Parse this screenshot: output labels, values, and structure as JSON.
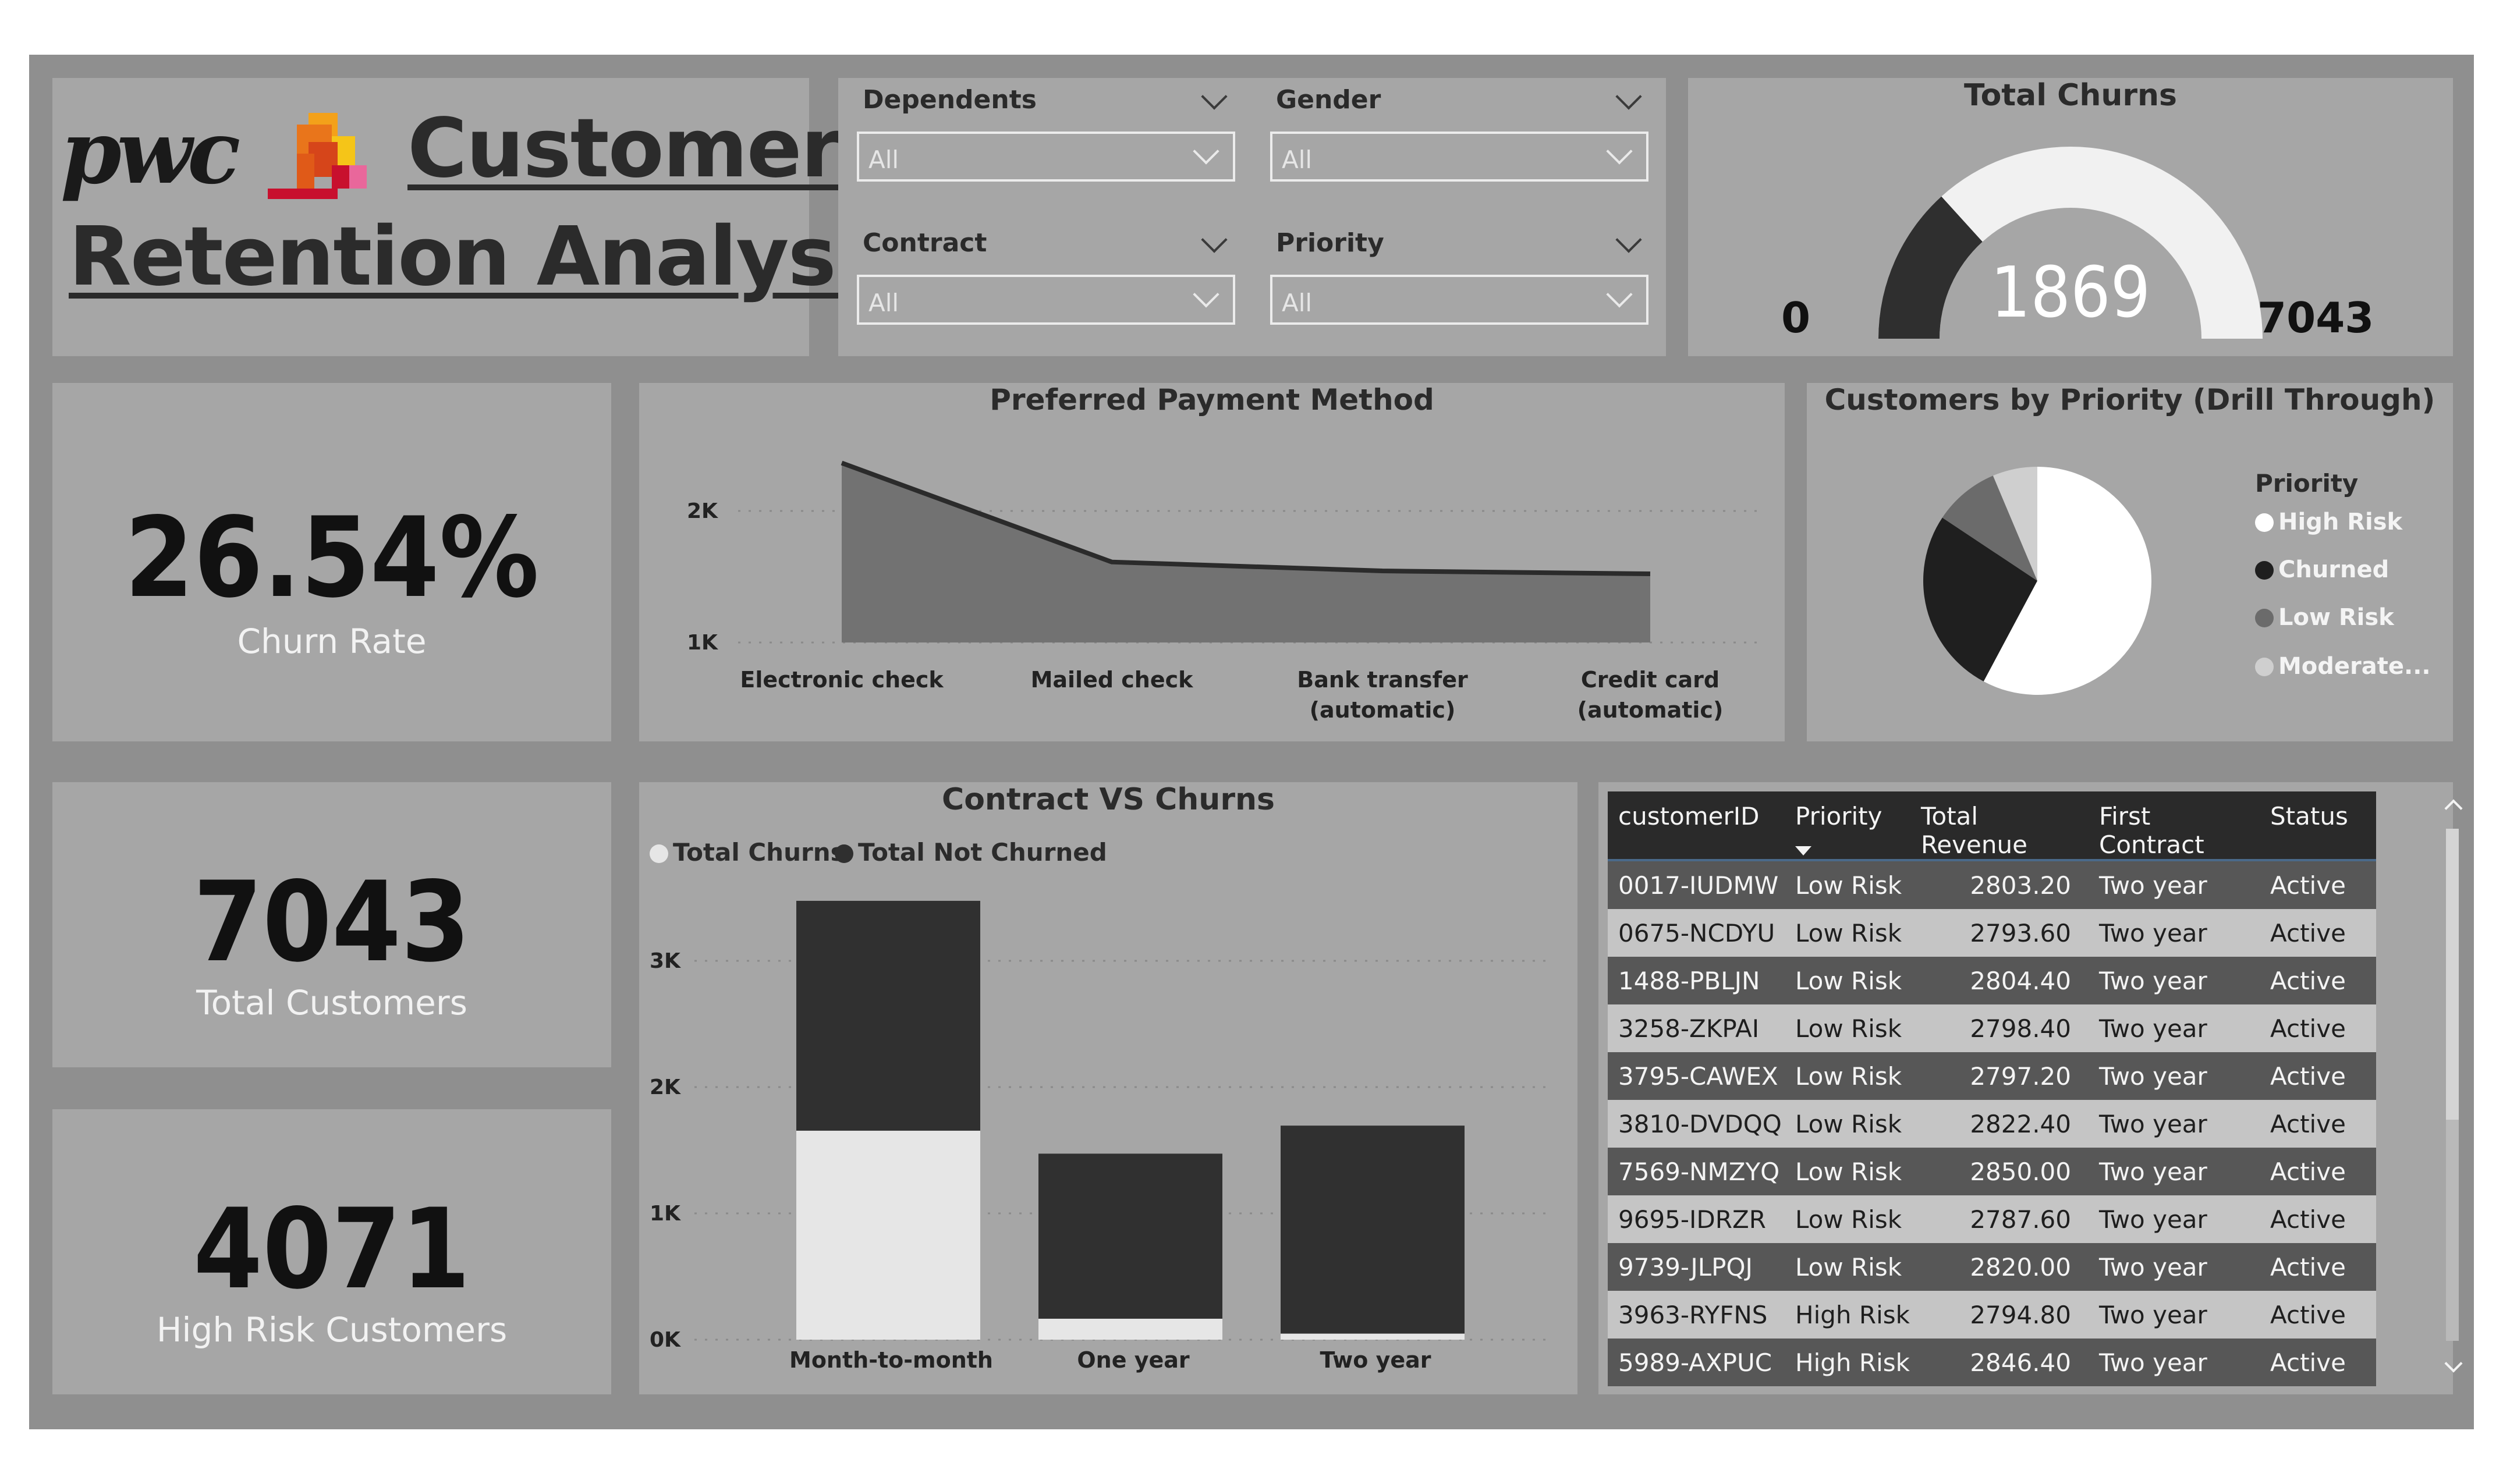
{
  "header": {
    "logo_text": "pwc",
    "title_line1": "Customer",
    "title_line2": "Retention  Analysis"
  },
  "slicers": [
    {
      "label": "Dependents",
      "value": "All"
    },
    {
      "label": "Gender",
      "value": "All"
    },
    {
      "label": "Contract",
      "value": "All"
    },
    {
      "label": "Priority",
      "value": "All"
    }
  ],
  "gauge": {
    "title": "Total Churns",
    "value": "1869",
    "min": "0",
    "max": "7043",
    "fraction": 0.2654
  },
  "kpis": {
    "churn_rate": {
      "value": "26.54%",
      "label": "Churn Rate"
    },
    "total_customers": {
      "value": "7043",
      "label": "Total Customers"
    },
    "high_risk": {
      "value": "4071",
      "label": "High Risk Customers"
    }
  },
  "payment_chart": {
    "title": "Preferred Payment Method",
    "y_ticks": [
      "2K",
      "1K"
    ],
    "categories": [
      "Electronic check",
      "Mailed check",
      "Bank transfer (automatic)",
      "Credit card (automatic)"
    ]
  },
  "priority_chart": {
    "title": "Customers by Priority (Drill Through)",
    "legend_title": "Priority",
    "legend": [
      "High Risk",
      "Churned",
      "Low Risk",
      "Moderate..."
    ]
  },
  "contract_chart": {
    "title": "Contract VS Churns",
    "legend": [
      "Total Churns",
      "Total Not Churned"
    ],
    "y_ticks": [
      "3K",
      "2K",
      "1K",
      "0K"
    ],
    "categories": [
      "Month-to-month",
      "One year",
      "Two year"
    ]
  },
  "chart_data": [
    {
      "type": "area",
      "title": "Preferred Payment Method",
      "categories": [
        "Electronic check",
        "Mailed check",
        "Bank transfer (automatic)",
        "Credit card (automatic)"
      ],
      "values": [
        2365,
        1612,
        1544,
        1522
      ],
      "ylim": [
        1000,
        2500
      ],
      "grid": true
    },
    {
      "type": "pie",
      "title": "Customers by Priority (Drill Through)",
      "labels": [
        "High Risk",
        "Churned",
        "Low Risk",
        "Moderate..."
      ],
      "values": [
        4071,
        1869,
        656,
        447
      ],
      "colors": [
        "#ffffff",
        "#1f1f1f",
        "#6b6b6b",
        "#cfcfcf"
      ],
      "legend": "right"
    },
    {
      "type": "bar",
      "stacked": true,
      "title": "Contract VS Churns",
      "categories": [
        "Month-to-month",
        "One year",
        "Two year"
      ],
      "series": [
        {
          "name": "Total Churns",
          "values": [
            1655,
            166,
            48
          ],
          "color": "#e6e6e6"
        },
        {
          "name": "Total Not Churned",
          "values": [
            1820,
            1307,
            1647
          ],
          "color": "#303030"
        }
      ],
      "ylim": [
        0,
        3600
      ],
      "legend": "top-left",
      "grid": true
    }
  ],
  "table": {
    "columns": [
      "customerID",
      "Priority",
      "Total Revenue",
      "First Contract",
      "Status"
    ],
    "rows": [
      [
        "0017-IUDMW",
        "Low Risk",
        "2803.20",
        "Two year",
        "Active"
      ],
      [
        "0675-NCDYU",
        "Low Risk",
        "2793.60",
        "Two year",
        "Active"
      ],
      [
        "1488-PBLJN",
        "Low Risk",
        "2804.40",
        "Two year",
        "Active"
      ],
      [
        "3258-ZKPAI",
        "Low Risk",
        "2798.40",
        "Two year",
        "Active"
      ],
      [
        "3795-CAWEX",
        "Low Risk",
        "2797.20",
        "Two year",
        "Active"
      ],
      [
        "3810-DVDQQ",
        "Low Risk",
        "2822.40",
        "Two year",
        "Active"
      ],
      [
        "7569-NMZYQ",
        "Low Risk",
        "2850.00",
        "Two year",
        "Active"
      ],
      [
        "9695-IDRZR",
        "Low Risk",
        "2787.60",
        "Two year",
        "Active"
      ],
      [
        "9739-JLPQJ",
        "Low Risk",
        "2820.00",
        "Two year",
        "Active"
      ],
      [
        "3963-RYFNS",
        "High Risk",
        "2794.80",
        "Two year",
        "Active"
      ],
      [
        "5989-AXPUC",
        "High Risk",
        "2846.40",
        "Two year",
        "Active"
      ]
    ]
  }
}
